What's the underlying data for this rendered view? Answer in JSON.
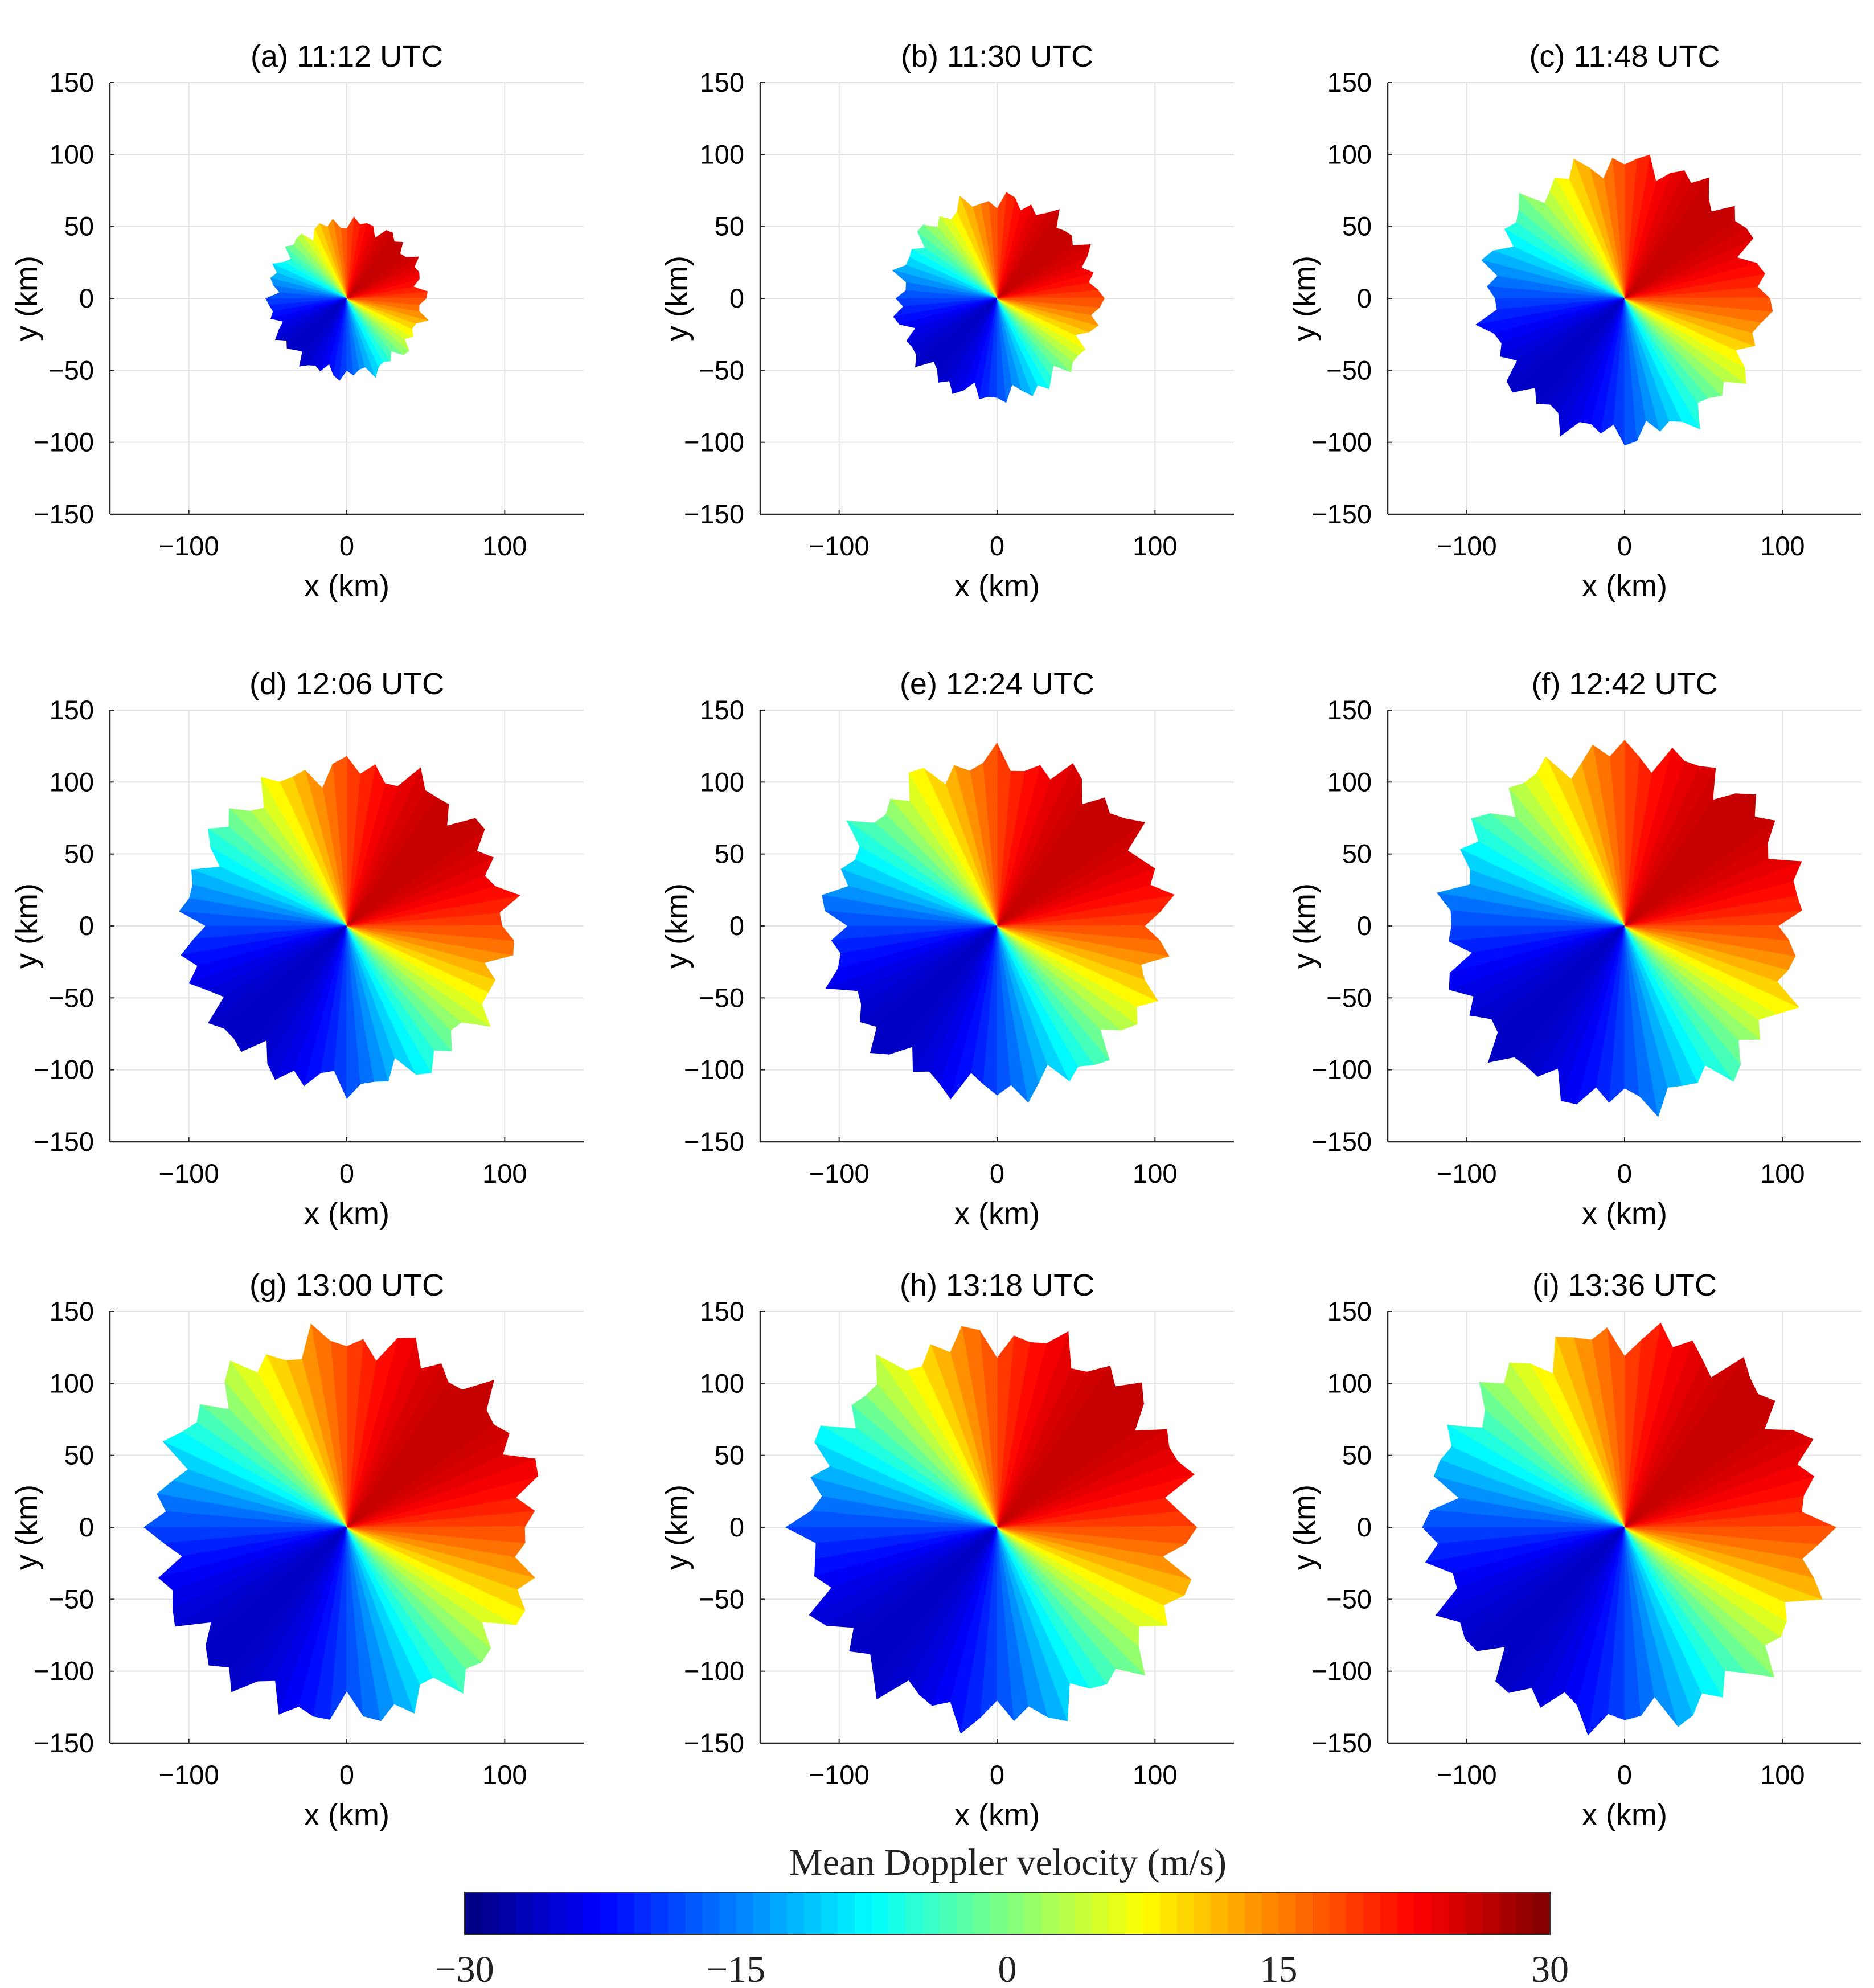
{
  "chart_data": {
    "type": "heatmap",
    "description_quantity": "Mean Doppler velocity",
    "panels": [
      {
        "label": "(a) 11:12 UTC",
        "coverage_radius_km": 48,
        "xlabel": "x (km)",
        "ylabel": "y (km)",
        "xlim": [
          -150,
          150
        ],
        "ylim": [
          -150,
          150
        ]
      },
      {
        "label": "(b) 11:30 UTC",
        "coverage_radius_km": 62,
        "xlabel": "x (km)",
        "ylabel": "y (km)",
        "xlim": [
          -150,
          150
        ],
        "ylim": [
          -150,
          150
        ]
      },
      {
        "label": "(c) 11:48 UTC",
        "coverage_radius_km": 86,
        "xlabel": "x (km)",
        "ylabel": "y (km)",
        "xlim": [
          -150,
          150
        ],
        "ylim": [
          -150,
          150
        ]
      },
      {
        "label": "(d) 12:06 UTC",
        "coverage_radius_km": 100,
        "xlabel": "x (km)",
        "ylabel": "y (km)",
        "xlim": [
          -150,
          150
        ],
        "ylim": [
          -150,
          150
        ]
      },
      {
        "label": "(e) 12:24 UTC",
        "coverage_radius_km": 104,
        "xlabel": "x (km)",
        "ylabel": "y (km)",
        "xlim": [
          -150,
          150
        ],
        "ylim": [
          -150,
          150
        ]
      },
      {
        "label": "(f) 12:42 UTC",
        "coverage_radius_km": 110,
        "xlabel": "x (km)",
        "ylabel": "y (km)",
        "xlim": [
          -150,
          150
        ],
        "ylim": [
          -150,
          150
        ]
      },
      {
        "label": "(g) 13:00 UTC",
        "coverage_radius_km": 118,
        "xlabel": "x (km)",
        "ylabel": "y (km)",
        "xlim": [
          -150,
          150
        ],
        "ylim": [
          -150,
          150
        ]
      },
      {
        "label": "(h) 13:18 UTC",
        "coverage_radius_km": 120,
        "xlabel": "x (km)",
        "ylabel": "y (km)",
        "xlim": [
          -150,
          150
        ],
        "ylim": [
          -150,
          150
        ]
      },
      {
        "label": "(i) 13:36 UTC",
        "coverage_radius_km": 121,
        "xlabel": "x (km)",
        "ylabel": "y (km)",
        "xlim": [
          -150,
          150
        ],
        "ylim": [
          -150,
          150
        ]
      }
    ],
    "x_ticks": [
      -100,
      0,
      100
    ],
    "x_tick_labels": [
      "−100",
      "0",
      "100"
    ],
    "y_ticks": [
      150,
      100,
      50,
      0,
      -50,
      -100,
      -150
    ],
    "y_tick_labels": [
      "150",
      "100",
      "50",
      "0",
      "−50",
      "−100",
      "−150"
    ],
    "grid": true,
    "colorbar": {
      "title": "Mean Doppler velocity  (m/s)",
      "range": [
        -30,
        30
      ],
      "ticks": [
        -30,
        -15,
        0,
        15,
        30
      ],
      "tick_labels": [
        "−30",
        "−15",
        "0",
        "15",
        "30"
      ],
      "colormap": "jet",
      "position": "bottom"
    }
  }
}
